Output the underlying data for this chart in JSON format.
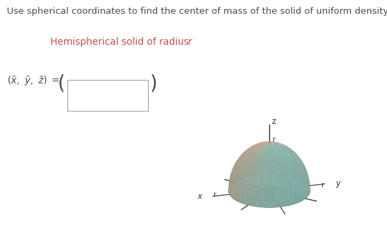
{
  "title_text": "Use spherical coordinates to find the center of mass of the solid of uniform density.",
  "subtitle_text": "Hemispherical solid of radius ",
  "subtitle_italic": "r",
  "background_color": "#ffffff",
  "title_color": "#4a4a4a",
  "subtitle_color": "#c0504d",
  "label_color": "#4a4a4a",
  "axis_color": "#3a3a3a",
  "z_label": "z",
  "x_label": "x",
  "y_label": "y",
  "r_label": "r",
  "title_fontsize": 9.5,
  "subtitle_fontsize": 10,
  "label_fontsize": 10,
  "fig_width": 5.62,
  "fig_height": 3.37,
  "elev": 22,
  "azim": -60
}
